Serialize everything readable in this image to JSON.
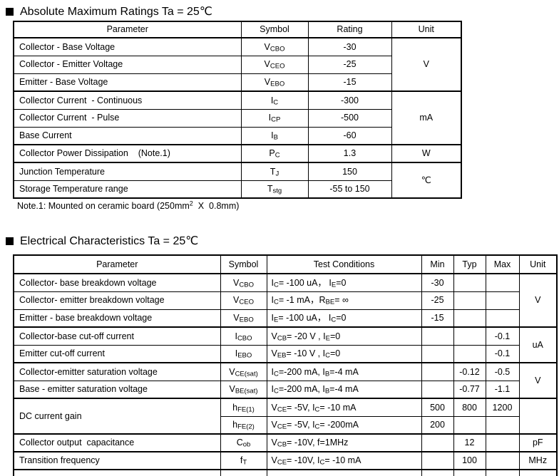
{
  "abs_max": {
    "title": "Absolute Maximum Ratings Ta = 25℃",
    "headers": [
      "Parameter",
      "Symbol",
      "Rating",
      "Unit"
    ],
    "rows": [
      {
        "param": "Collector - Base Voltage",
        "symbol": "V_{CBO}",
        "rating": "-30"
      },
      {
        "param": "Collector - Emitter Voltage",
        "symbol": "V_{CEO}",
        "rating": "-25"
      },
      {
        "param": "Emitter - Base Voltage",
        "symbol": "V_{EBO}",
        "rating": "-15"
      },
      {
        "param": "Collector Current  - Continuous",
        "symbol": "I_{C}",
        "rating": "-300"
      },
      {
        "param": "Collector Current  - Pulse",
        "symbol": "I_{CP}",
        "rating": "-500"
      },
      {
        "param": "Base Current",
        "symbol": "I_{B}",
        "rating": "-60"
      },
      {
        "param": "Collector Power Dissipation    (Note.1)",
        "symbol": "P_{C}",
        "rating": "1.3"
      },
      {
        "param": "Junction Temperature",
        "symbol": "T_{J}",
        "rating": "150"
      },
      {
        "param": "Storage Temperature range",
        "symbol": "T_{stg}",
        "rating": "-55 to 150"
      }
    ],
    "units": {
      "voltage": "V",
      "current": "mA",
      "power": "W",
      "temperature": "℃"
    },
    "note": "Note.1: Mounted on ceramic board (250mm^{2}  X  0.8mm)"
  },
  "elec_char": {
    "title": "Electrical Characteristics Ta = 25℃",
    "headers": [
      "Parameter",
      "Symbol",
      "Test Conditions",
      "Min",
      "Typ",
      "Max",
      "Unit"
    ],
    "rows": [
      {
        "param": "Collector- base breakdown voltage",
        "symbol": "V_{CBO}",
        "cond": "I_{C}= -100 uA， I_{E}=0",
        "min": "-30",
        "typ": "",
        "max": ""
      },
      {
        "param": "Collector- emitter breakdown voltage",
        "symbol": "V_{CEO}",
        "cond": "I_{C}= -1 mA，R_{BE}= ∞",
        "min": "-25",
        "typ": "",
        "max": ""
      },
      {
        "param": "Emitter - base breakdown voltage",
        "symbol": "V_{EBO}",
        "cond": "I_{E}= -100 uA， I_{C}=0",
        "min": "-15",
        "typ": "",
        "max": ""
      },
      {
        "param": "Collector-base cut-off current",
        "symbol": "I_{CBO}",
        "cond": "V_{CB}= -20 V , I_{E}=0",
        "min": "",
        "typ": "",
        "max": "-0.1"
      },
      {
        "param": "Emitter cut-off current",
        "symbol": "I_{EBO}",
        "cond": "V_{EB}= -10 V , I_{C}=0",
        "min": "",
        "typ": "",
        "max": "-0.1"
      },
      {
        "param": "Collector-emitter saturation voltage",
        "symbol": "V_{CE(sat)}",
        "cond": "I_{C}=-200 mA, I_{B}=-4 mA",
        "min": "",
        "typ": "-0.12",
        "max": "-0.5"
      },
      {
        "param": "Base - emitter saturation voltage",
        "symbol": "V_{BE(sat)}",
        "cond": "I_{C}=-200 mA, I_{B}=-4 mA",
        "min": "",
        "typ": "-0.77",
        "max": "-1.1"
      },
      {
        "param": "DC current gain",
        "symbol": "h_{FE(1)}",
        "cond": "V_{CE}= -5V, I_{C}= -10 mA",
        "min": "500",
        "typ": "800",
        "max": "1200"
      },
      {
        "param": "",
        "symbol": "h_{FE(2)}",
        "cond": "V_{CE}= -5V, I_{C}= -200mA",
        "min": "200",
        "typ": "",
        "max": ""
      },
      {
        "param": "Collector output  capacitance",
        "symbol": "C_{ob}",
        "cond": "V_{CB}= -10V, f=1MHz",
        "min": "",
        "typ": "12",
        "max": ""
      },
      {
        "param": "Transition frequency",
        "symbol": "f_{T}",
        "cond": "V_{CE}= -10V, I_{C}= -10 mA",
        "min": "",
        "typ": "100",
        "max": ""
      }
    ],
    "units": {
      "breakdown": "V",
      "cutoff": "uA",
      "saturation": "V",
      "gain": "",
      "capacitance": "pF",
      "frequency": "MHz"
    }
  }
}
